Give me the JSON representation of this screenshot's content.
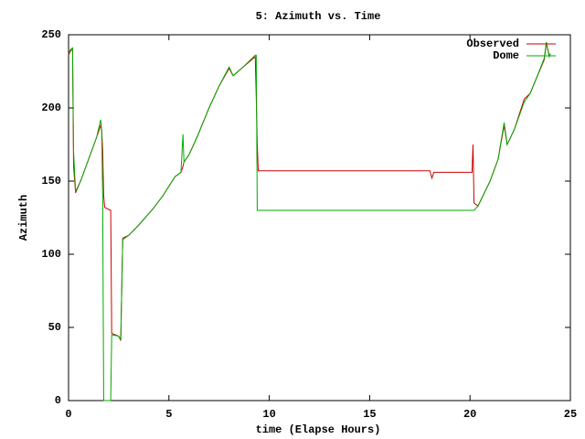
{
  "chart_data": {
    "type": "line",
    "title": "5: Azimuth vs. Time",
    "x_label": "time (Elapse Hours)",
    "y_label": "Azimuth",
    "x": [
      0,
      0.1,
      0.2,
      0.25,
      0.35,
      0.6,
      1.0,
      1.4,
      1.6,
      1.65,
      1.7,
      1.75,
      1.8,
      2.1,
      2.15,
      2.5,
      2.6,
      2.7,
      3.0,
      3.5,
      4.2,
      4.7,
      5.3,
      5.6,
      5.7,
      5.75,
      6.0,
      6.4,
      7.0,
      7.5,
      8.0,
      8.2,
      8.7,
      9.3,
      9.35,
      9.4,
      9.45,
      18.0,
      18.1,
      18.2,
      20.1,
      20.15,
      20.2,
      20.4,
      21.0,
      21.4,
      21.7,
      21.85,
      22.2,
      22.7,
      23.0,
      23.3,
      23.7,
      23.8,
      23.95,
      24.0
    ],
    "series": [
      {
        "name": "Observed",
        "color": "#cc0000",
        "values": [
          236,
          239,
          240,
          160,
          142,
          150,
          165,
          180,
          188,
          185,
          171,
          140,
          132,
          130,
          46,
          44,
          41,
          111,
          113,
          120,
          131,
          140,
          153,
          156,
          160,
          163,
          168,
          180,
          200,
          215,
          227,
          222,
          228,
          235,
          208,
          176,
          157,
          157,
          152,
          156,
          156,
          175,
          135,
          133,
          150,
          165,
          188,
          175,
          185,
          206,
          210,
          220,
          233,
          244,
          236,
          237
        ]
      },
      {
        "name": "Dome",
        "color": "#00aa00",
        "values": [
          237,
          240,
          241,
          170,
          143,
          150,
          165,
          180,
          192,
          185,
          140,
          0,
          0,
          0,
          45,
          44,
          42,
          110,
          113,
          120,
          131,
          140,
          153,
          156,
          182,
          163,
          168,
          180,
          200,
          215,
          228,
          222,
          228,
          236,
          236,
          130,
          130,
          130,
          130,
          130,
          130,
          130,
          130,
          133,
          150,
          165,
          190,
          175,
          185,
          204,
          210,
          220,
          234,
          245,
          235,
          237
        ]
      }
    ],
    "xlim": [
      0,
      25
    ],
    "xticks": [
      0,
      5,
      10,
      15,
      20,
      25
    ],
    "ylim": [
      0,
      250
    ],
    "yticks": [
      0,
      50,
      100,
      150,
      200,
      250
    ],
    "grid": false,
    "legend": "top-right"
  }
}
